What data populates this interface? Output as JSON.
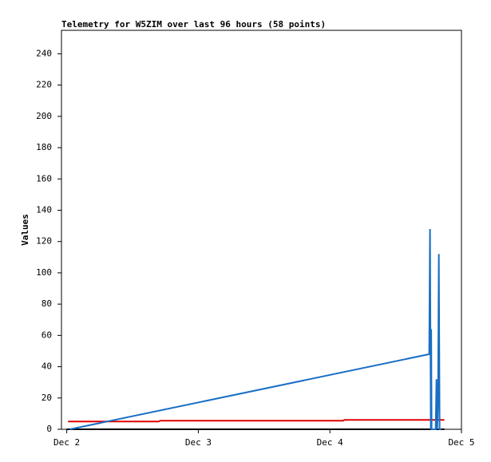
{
  "chart_data": {
    "type": "line",
    "title": "Telemetry for W5ZIM over last 96 hours (58 points)",
    "y_label": "Values",
    "xlim": [
      1.96,
      5.0
    ],
    "xticks": [
      {
        "value": 2,
        "label": "Dec 2"
      },
      {
        "value": 3,
        "label": "Dec 3"
      },
      {
        "value": 4,
        "label": "Dec 4"
      },
      {
        "value": 5,
        "label": "Dec 5"
      }
    ],
    "ylim": [
      0,
      255
    ],
    "yticks": [
      0,
      20,
      40,
      60,
      80,
      100,
      120,
      140,
      160,
      180,
      200,
      220,
      240
    ],
    "series": [
      {
        "color": "#000000",
        "x": [
          2.0,
          4.87
        ],
        "values": [
          0,
          0
        ]
      },
      {
        "color": "#e00000",
        "x": [
          2.01,
          2.7,
          2.71,
          4.1,
          4.11,
          4.87
        ],
        "values": [
          5,
          5,
          5.5,
          5.5,
          6,
          6
        ]
      },
      {
        "color": "#1a6fc4",
        "x": [
          2.024,
          4.755,
          4.761,
          4.767,
          4.77,
          4.773,
          4.804,
          4.81,
          4.816,
          4.822,
          4.828,
          4.834,
          4.846
        ],
        "values": [
          0,
          48,
          128,
          0,
          64,
          0,
          0,
          32,
          0,
          17,
          112,
          0,
          0
        ]
      }
    ]
  }
}
